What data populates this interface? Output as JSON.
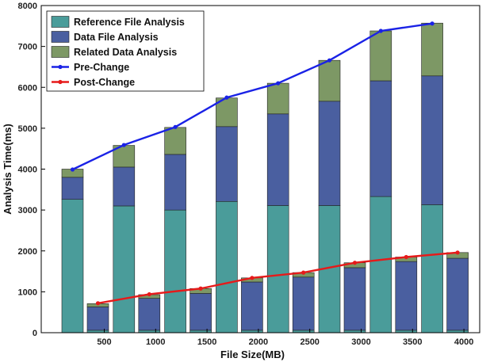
{
  "chart_data": {
    "type": "bar",
    "stacked": true,
    "xlabel": "File Size(MB)",
    "ylabel": "Analysis Time(ms)",
    "ylim": [
      0,
      8000
    ],
    "yticks": [
      0,
      1000,
      2000,
      3000,
      4000,
      5000,
      6000,
      7000,
      8000
    ],
    "xticks": [
      {
        "label": "500",
        "group": 0
      },
      {
        "label": "1000",
        "group": 1
      },
      {
        "label": "1500",
        "group": 2
      },
      {
        "label": "2000",
        "group": 3
      },
      {
        "label": "2500",
        "group": 4
      },
      {
        "label": "3000",
        "group": 5
      },
      {
        "label": "3500",
        "group": 6
      },
      {
        "label": "4000",
        "group": 7
      }
    ],
    "bar_series": [
      {
        "name": "Reference File Analysis",
        "color": "#4A9C9A",
        "pre": [
          3260,
          3100,
          3000,
          3210,
          3110,
          3110,
          3330,
          3130
        ],
        "post": [
          60,
          60,
          60,
          60,
          60,
          60,
          60,
          60
        ]
      },
      {
        "name": "Data File Analysis",
        "color": "#4A5FA0",
        "pre": [
          540,
          950,
          1360,
          1830,
          2240,
          2550,
          2830,
          3150
        ],
        "post": [
          570,
          780,
          900,
          1180,
          1300,
          1530,
          1680,
          1760
        ]
      },
      {
        "name": "Related Data Analysis",
        "color": "#7D9865",
        "pre": [
          200,
          530,
          660,
          700,
          750,
          1000,
          1220,
          1290
        ],
        "post": [
          80,
          90,
          120,
          100,
          110,
          120,
          110,
          140
        ]
      }
    ],
    "line_series": [
      {
        "name": "Pre-Change",
        "color": "#1A22E6",
        "values": [
          3990,
          4590,
          5030,
          5750,
          6100,
          6660,
          7380,
          7560
        ]
      },
      {
        "name": "Post-Change",
        "color": "#E61A1A",
        "values": [
          720,
          940,
          1080,
          1340,
          1470,
          1710,
          1850,
          1960
        ]
      }
    ],
    "legend_position": "top-left"
  }
}
